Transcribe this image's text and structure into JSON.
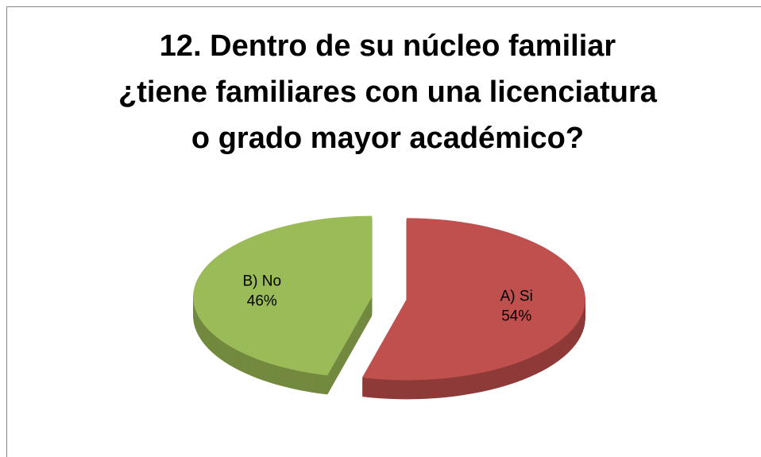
{
  "chart_data": {
    "type": "pie",
    "title": [
      "12. Dentro de su núcleo familiar",
      "¿tiene familiares con una licenciatura",
      "o grado mayor académico?"
    ],
    "categories": [
      "A) Si",
      "B) No"
    ],
    "values": [
      54,
      46
    ],
    "value_labels": [
      "54%",
      "46%"
    ],
    "colors": [
      "#c0504d",
      "#9bbb59"
    ],
    "side_colors": [
      "#8e3a38",
      "#72893f"
    ]
  }
}
